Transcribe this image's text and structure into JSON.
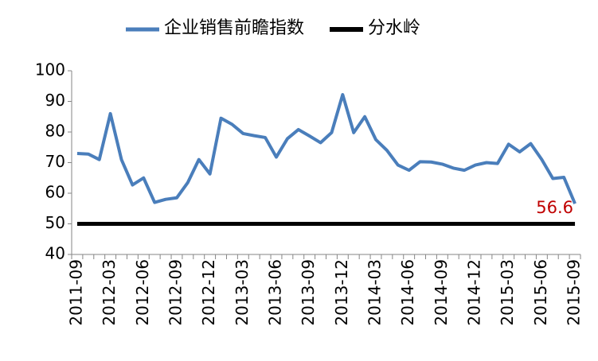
{
  "chart_data": {
    "type": "line",
    "categories": [
      "2011-09",
      null,
      null,
      "2012-03",
      null,
      null,
      "2012-06",
      null,
      null,
      "2012-09",
      null,
      null,
      "2012-12",
      null,
      null,
      "2013-03",
      null,
      null,
      "2013-06",
      null,
      null,
      "2013-09",
      null,
      null,
      "2013-12",
      null,
      null,
      "2014-03",
      null,
      null,
      "2014-06",
      null,
      null,
      "2014-09",
      null,
      null,
      "2014-12",
      null,
      null,
      "2015-03",
      null,
      null,
      "2015-06",
      null,
      null,
      "2015-09"
    ],
    "series": [
      {
        "name": "企业销售前瞻指数",
        "color": "#4a7ebb",
        "values": [
          73,
          72.8,
          71,
          86,
          71,
          62.7,
          65,
          57,
          58,
          58.5,
          63.5,
          71,
          66.3,
          84.5,
          82.5,
          79.5,
          78.8,
          78.2,
          71.8,
          77.8,
          80.8,
          78.7,
          76.5,
          79.8,
          92.2,
          79.8,
          85,
          77.5,
          74,
          69.2,
          67.5,
          70.3,
          70.2,
          69.5,
          68.2,
          67.5,
          69.2,
          70,
          69.7,
          76,
          73.5,
          76.2,
          71,
          64.8,
          65.2,
          56.6
        ]
      },
      {
        "name": "分水岭",
        "color": "#000000",
        "values": [
          50,
          50,
          50,
          50,
          50,
          50,
          50,
          50,
          50,
          50,
          50,
          50,
          50,
          50,
          50,
          50,
          50,
          50,
          50,
          50,
          50,
          50,
          50,
          50,
          50,
          50,
          50,
          50,
          50,
          50,
          50,
          50,
          50,
          50,
          50,
          50,
          50,
          50,
          50,
          50,
          50,
          50,
          50,
          50,
          50,
          50
        ]
      }
    ],
    "annotation_color": "#c00000",
    "ylim": [
      40,
      100
    ],
    "yticks": [
      40,
      50,
      60,
      70,
      80,
      90,
      100
    ],
    "grid": false,
    "legend": "top"
  }
}
